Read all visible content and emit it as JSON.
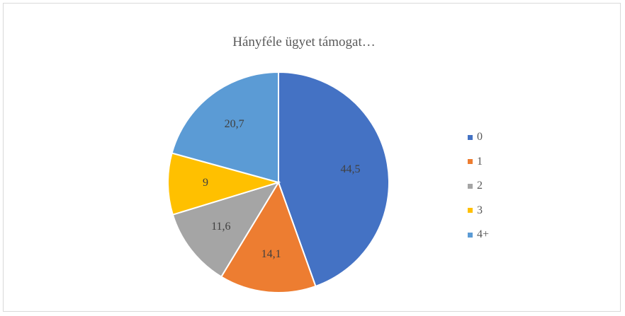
{
  "chart_data": {
    "type": "pie",
    "title": "Hányféle ügyet támogat…",
    "categories": [
      "0",
      "1",
      "2",
      "3",
      "4+"
    ],
    "values": [
      44.5,
      14.1,
      11.6,
      9,
      20.7
    ],
    "data_labels": [
      "44,5",
      "14,1",
      "11,6",
      "9",
      "20,7"
    ],
    "colors": [
      "#4472c4",
      "#ed7d31",
      "#a5a5a5",
      "#ffc000",
      "#5b9bd5"
    ],
    "legend_position": "right",
    "start_angle": "12 o'clock",
    "direction": "clockwise"
  }
}
